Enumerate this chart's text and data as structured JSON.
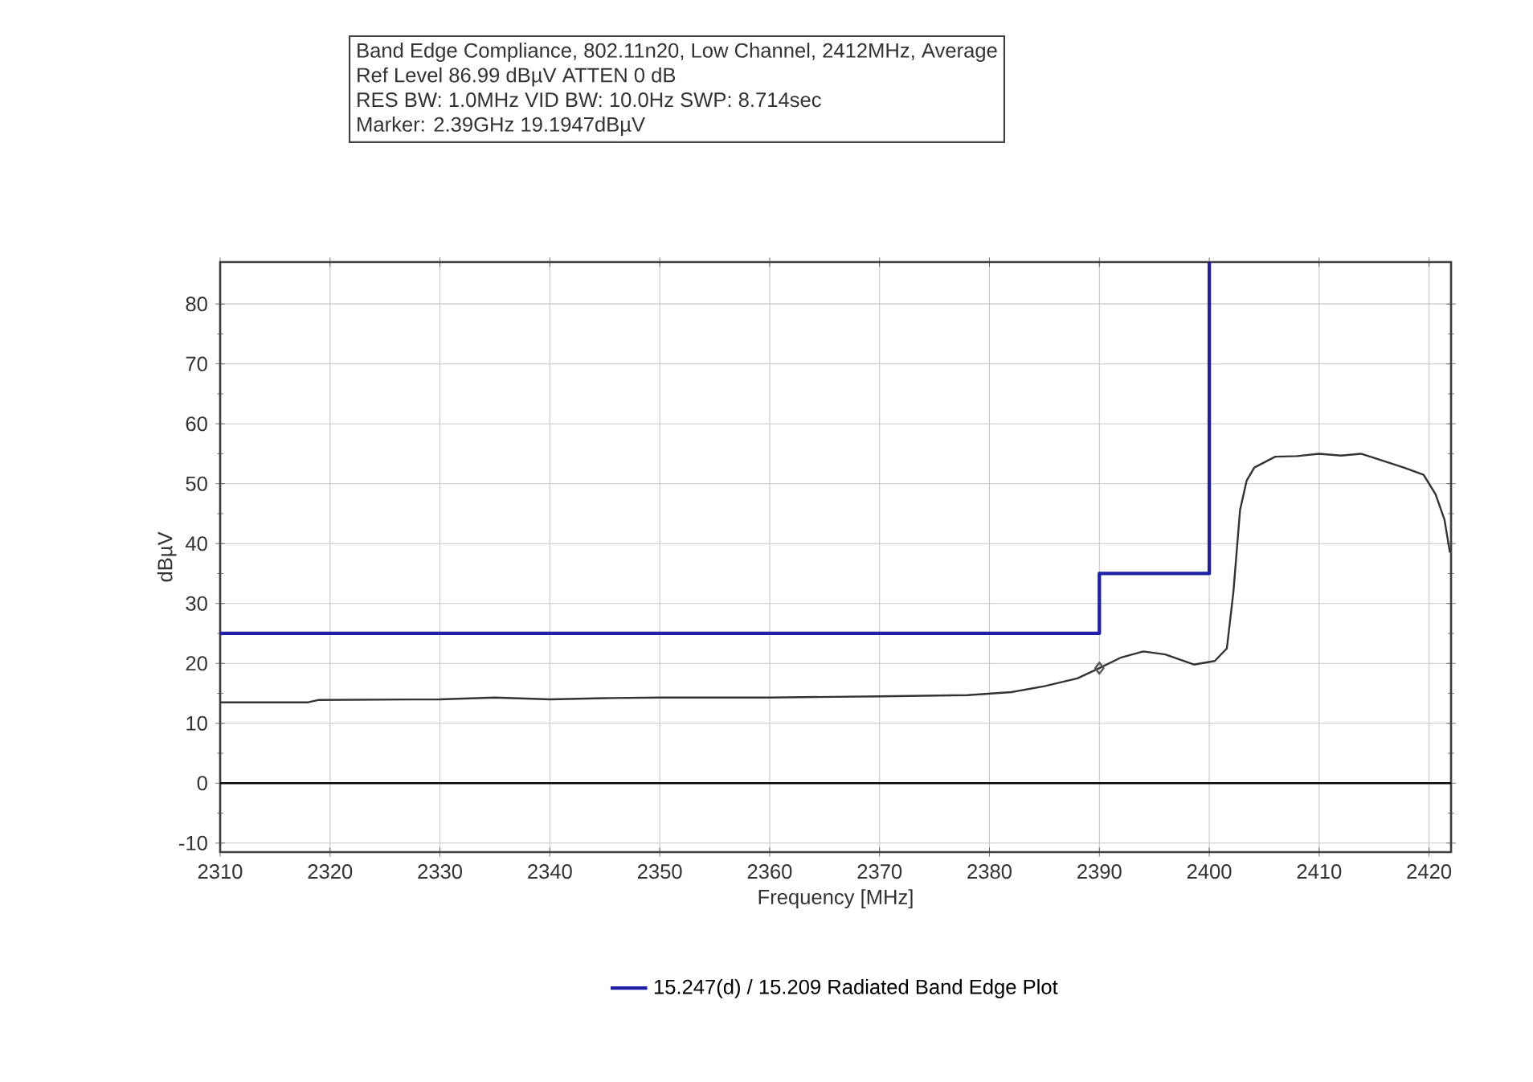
{
  "chart_data": {
    "type": "line",
    "title": "Band Edge Compliance, 802.11n20, Low Channel, 2412MHz, Average",
    "annotations": [
      "Ref Level 86.99 dBµV    ATTEN 0 dB",
      "RES BW: 1.0MHz  VID BW: 10.0Hz  SWP: 8.714sec",
      "Marker: 2.39GHz  19.1947dBµV"
    ],
    "xlabel": "Frequency [MHz]",
    "ylabel": "dBµV",
    "xlim": [
      2310,
      2422
    ],
    "ylim": [
      -11.5,
      87
    ],
    "xticks": [
      2310,
      2320,
      2330,
      2340,
      2350,
      2360,
      2370,
      2380,
      2390,
      2400,
      2410,
      2420
    ],
    "yticks": [
      -10,
      0,
      10,
      20,
      30,
      40,
      50,
      60,
      70,
      80
    ],
    "grid": true,
    "legend": "bottom",
    "ref_lines": [
      {
        "axis": "y",
        "value": 0,
        "color": "#000000"
      }
    ],
    "series": [
      {
        "name": "15.247(d) / 15.209 Radiated Band  Edge Plot",
        "color": "#1f1fa8",
        "x": [
          2310,
          2390,
          2390,
          2400,
          2400
        ],
        "values": [
          25,
          25,
          35,
          35,
          87
        ]
      },
      {
        "color": "#333333",
        "x": [
          2310,
          2318,
          2319,
          2330,
          2335,
          2340,
          2345,
          2350,
          2360,
          2370,
          2378,
          2382,
          2385,
          2388,
          2390,
          2392,
          2394,
          2396,
          2398.6,
          2400.5,
          2401.6,
          2402.2,
          2402.8,
          2403.4,
          2404.1,
          2406,
          2408,
          2410,
          2412,
          2413.8,
          2415,
          2417.7,
          2419.5,
          2420.6,
          2421.4,
          2421.9
        ],
        "values": [
          13.5,
          13.5,
          13.9,
          14.0,
          14.3,
          14.0,
          14.2,
          14.3,
          14.3,
          14.5,
          14.7,
          15.2,
          16.2,
          17.5,
          19.2,
          21.0,
          22.0,
          21.5,
          19.8,
          20.4,
          22.5,
          32,
          45.6,
          50.5,
          52.7,
          54.5,
          54.6,
          55,
          54.7,
          55,
          54.3,
          52.7,
          51.5,
          48.2,
          44,
          38.5
        ]
      },
      {
        "type": "scatter",
        "marker": "diamond",
        "color": "#555555",
        "x": [
          2390
        ],
        "values": [
          19.2
        ]
      }
    ]
  }
}
